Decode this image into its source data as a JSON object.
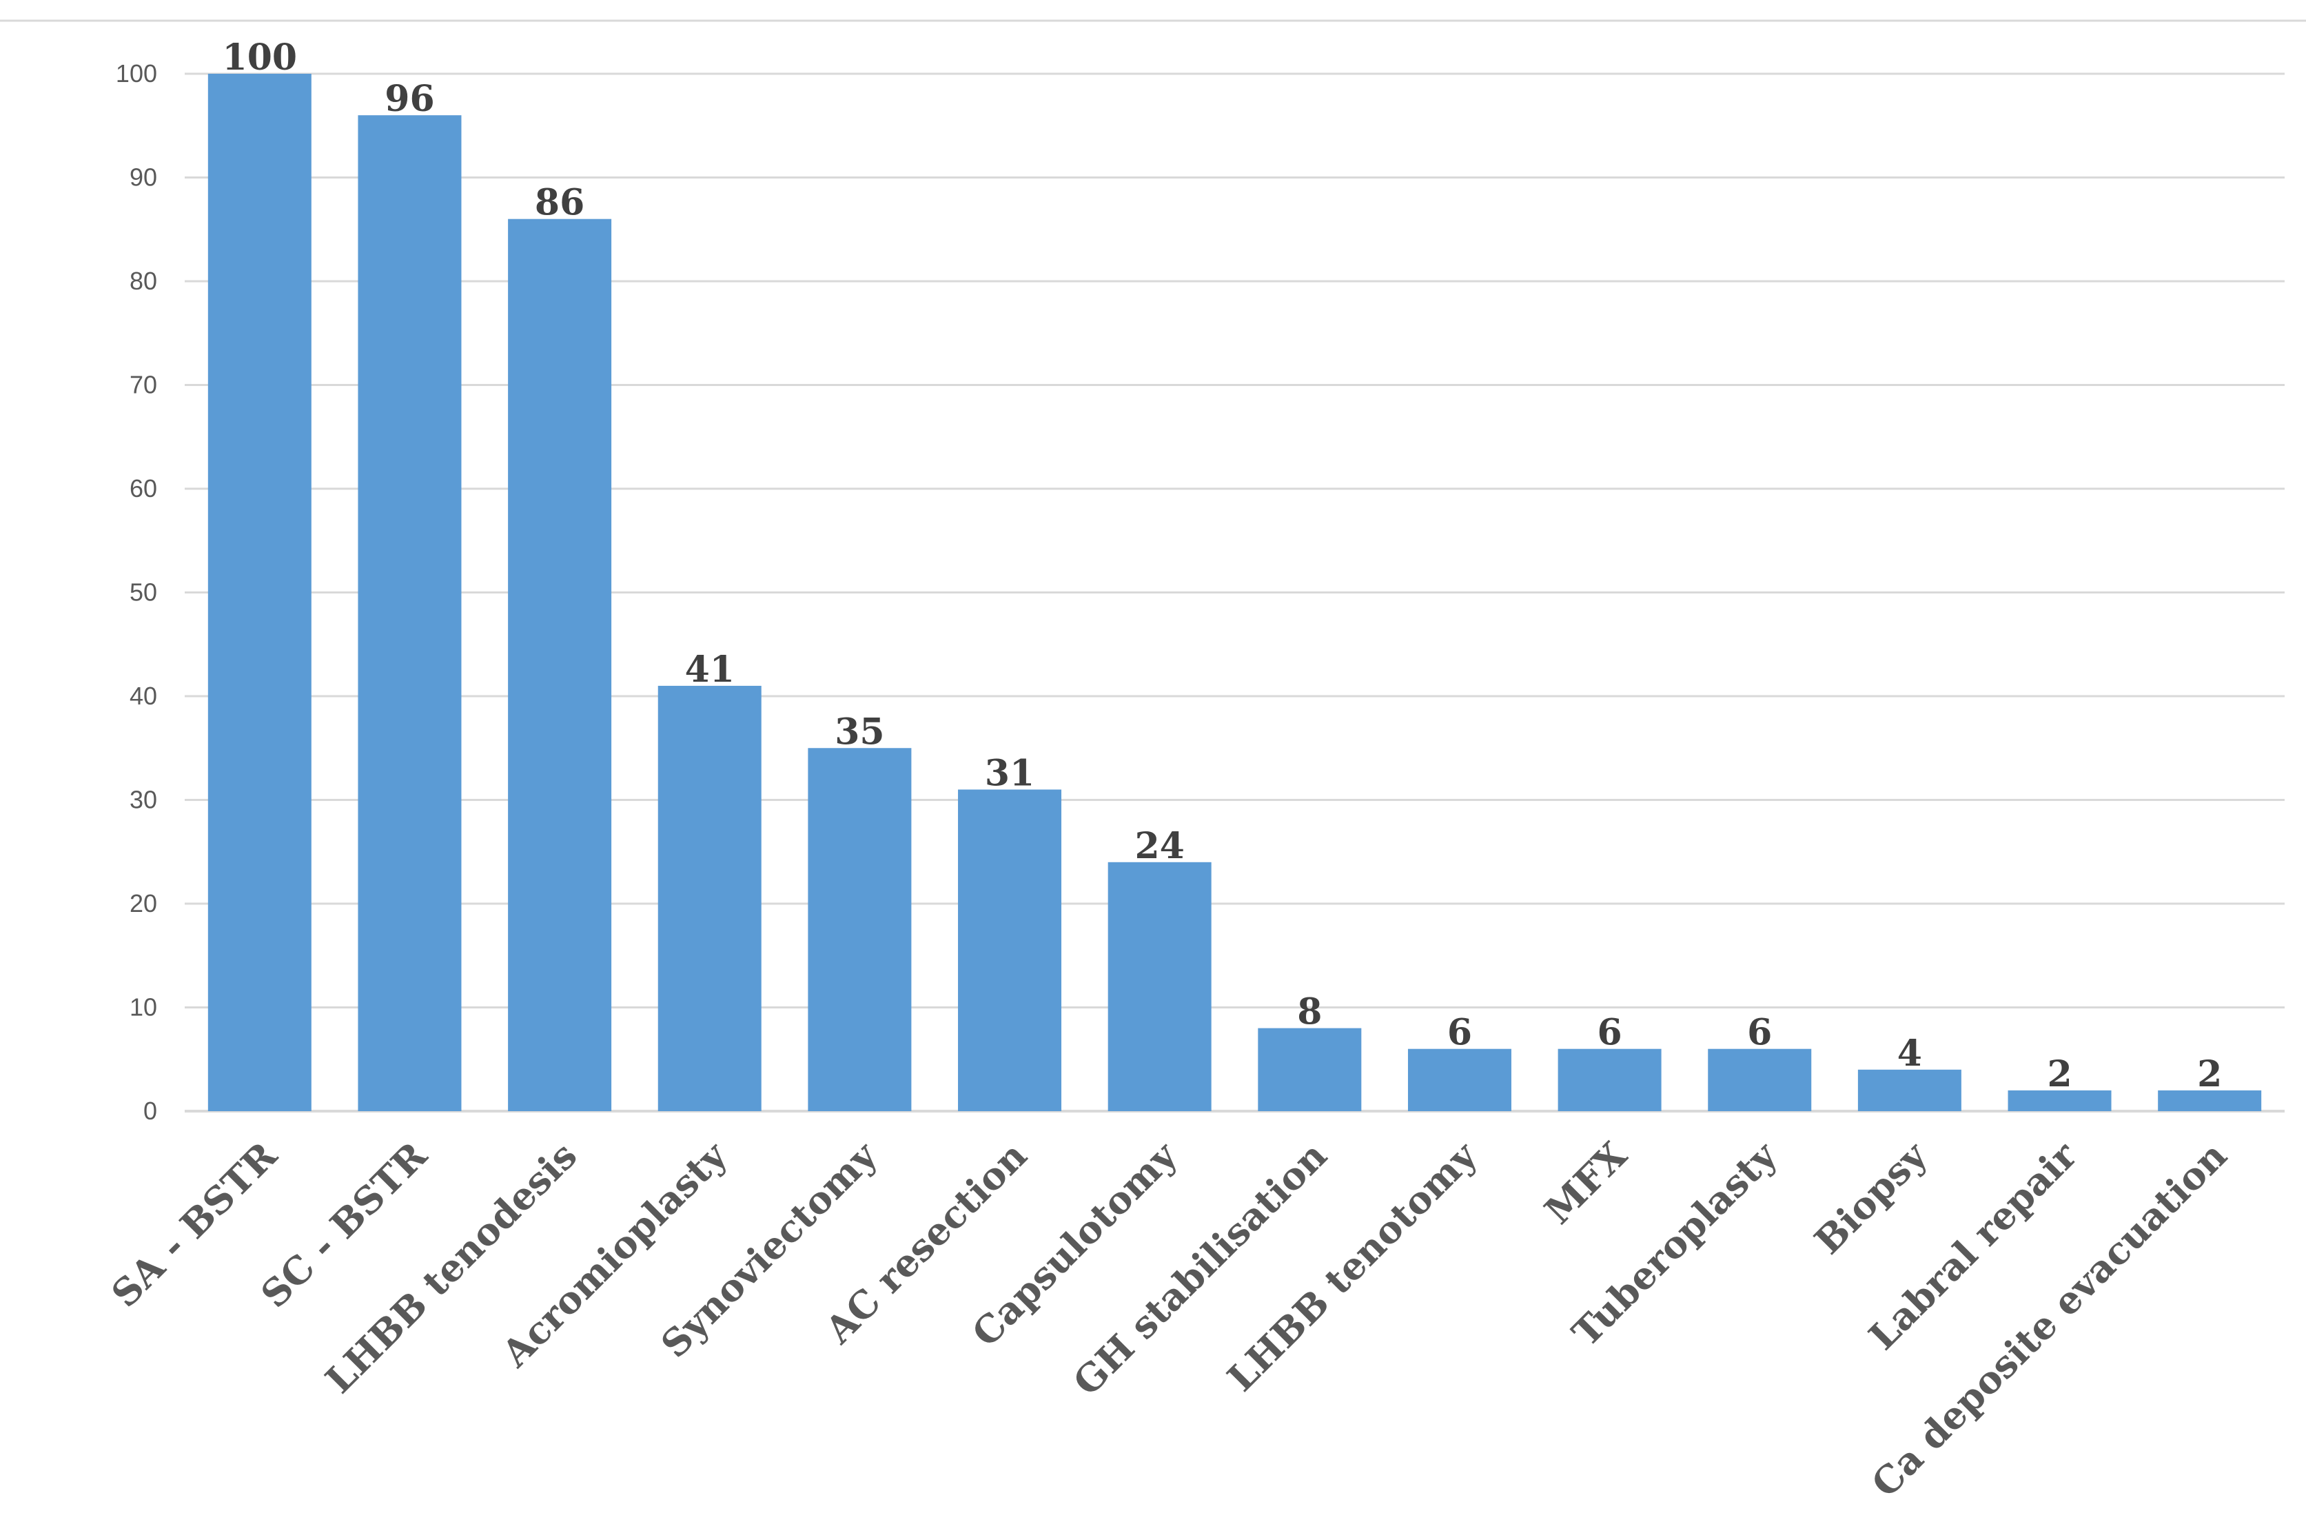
{
  "chart_data": {
    "type": "bar",
    "title": "",
    "xlabel": "",
    "ylabel": "",
    "categories": [
      "SA - BSTR",
      "SC - BSTR",
      "LHBB tenodesis",
      "Acromioplasty",
      "Synoviectomy",
      "AC resection",
      "Capsulotomy",
      "GH stabilisation",
      "LHBB tenotomy",
      "MFX",
      "Tuberoplasty",
      "Biopsy",
      "Labral repair",
      "Ca deposite evacuation"
    ],
    "values": [
      100,
      96,
      86,
      41,
      35,
      31,
      24,
      8,
      6,
      6,
      6,
      4,
      2,
      2
    ],
    "data_labels": [
      "100",
      "96",
      "86",
      "41",
      "35",
      "31",
      "24",
      "8",
      "6",
      "6",
      "6",
      "4",
      "2",
      "2"
    ],
    "ylim": [
      0,
      100
    ],
    "yticks": [
      "0",
      "10",
      "20",
      "30",
      "40",
      "50",
      "60",
      "70",
      "80",
      "90",
      "100"
    ],
    "grid": true,
    "legend": "none",
    "bar_color": "#5b9bd5"
  }
}
